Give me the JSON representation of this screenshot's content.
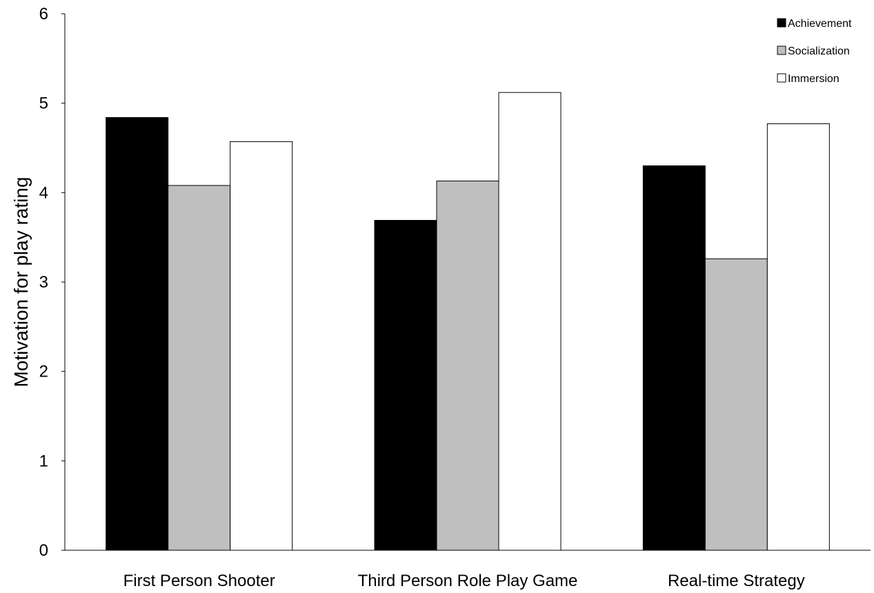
{
  "chart_data": {
    "type": "bar",
    "title": "",
    "xlabel": "",
    "ylabel": "Motivation for play rating",
    "ylim": [
      0,
      6
    ],
    "yticks": [
      0,
      1,
      2,
      3,
      4,
      5,
      6
    ],
    "categories": [
      "First Person Shooter",
      "Third Person Role Play Game",
      "Real-time Strategy"
    ],
    "series": [
      {
        "name": "Achievement",
        "color": "#000000",
        "values": [
          4.84,
          3.69,
          4.3
        ]
      },
      {
        "name": "Socialization",
        "color": "#bfbfbf",
        "values": [
          4.08,
          4.13,
          3.26
        ]
      },
      {
        "name": "Immersion",
        "color": "#ffffff",
        "values": [
          4.57,
          5.12,
          4.77
        ]
      }
    ],
    "grid": false,
    "legend_position": "top-right"
  }
}
